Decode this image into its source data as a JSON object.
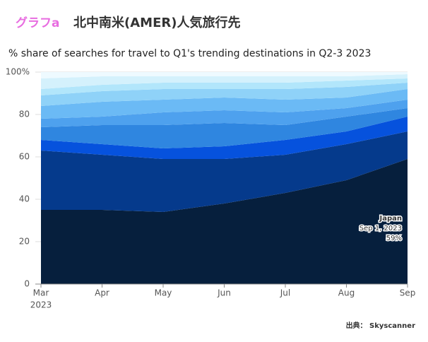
{
  "header": {
    "tag": "グラフa",
    "title": "北中南米(AMER)人気旅行先"
  },
  "chart_data": {
    "type": "stacked_area",
    "title": "% share of searches for travel to Q1's trending destinations in Q2-3 2023",
    "categories": [
      "Mar",
      "Apr",
      "May",
      "Jun",
      "Jul",
      "Aug",
      "Sep"
    ],
    "x_sub_label": "2023",
    "ylim": [
      0,
      100
    ],
    "yticks": [
      0,
      20,
      40,
      60,
      80,
      {
        "value": 100,
        "label": "100%"
      }
    ],
    "series": [
      {
        "name": "Japan",
        "color": "#061f3d",
        "values": [
          35,
          35,
          34,
          38,
          43,
          49,
          59
        ],
        "value_labels": [
          null,
          null,
          null,
          null,
          null,
          null,
          "59%"
        ]
      },
      {
        "color": "#053a8c",
        "values": [
          28,
          26,
          25,
          21,
          18,
          17,
          13
        ]
      },
      {
        "color": "#0652dd",
        "values": [
          5,
          5,
          5,
          6,
          7,
          6,
          7
        ]
      },
      {
        "color": "#2f86e0",
        "values": [
          6,
          9,
          11,
          11,
          7,
          7,
          4
        ]
      },
      {
        "color": "#4ea1ee",
        "values": [
          4,
          4,
          6,
          6,
          6,
          4,
          4
        ]
      },
      {
        "color": "#6bbaf5",
        "values": [
          6,
          7,
          6,
          6,
          6,
          5,
          5
        ]
      },
      {
        "color": "#8fd2f8",
        "values": [
          5,
          5,
          5,
          4,
          5,
          5,
          3
        ]
      },
      {
        "color": "#b2e6fb",
        "values": [
          3,
          3,
          3,
          3,
          3,
          3,
          2
        ]
      },
      {
        "color": "#d4f1fc",
        "values": [
          5,
          4,
          3,
          3,
          3,
          2,
          2
        ]
      },
      {
        "color": "#eefaff",
        "values": [
          3,
          2,
          2,
          2,
          2,
          2,
          1
        ]
      }
    ],
    "annotation": {
      "date": "Sep 1, 2023"
    }
  },
  "source": "出典： Skyscanner"
}
